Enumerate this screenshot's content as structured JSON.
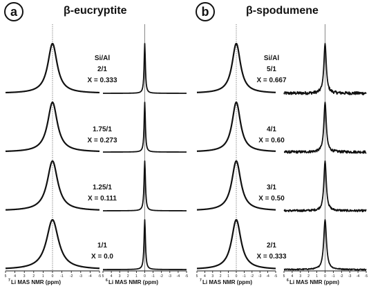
{
  "chart_data": [
    {
      "type": "line",
      "panel_letter": "a",
      "title": "β-eucryptite",
      "xlabel_left": {
        "sup": "7",
        "text": "Li MAS NMR (ppm)"
      },
      "xlabel_right": {
        "sup": "6",
        "text": "Li MAS NMR (ppm)"
      },
      "xlim": [
        5,
        -5
      ],
      "xticks": [
        "5",
        "4",
        "3",
        "2",
        "1",
        "0",
        "-1",
        "-2",
        "-3",
        "-4",
        "-5"
      ],
      "grid": false,
      "series": [
        {
          "label_lines": [
            "Si/Al",
            "2/1",
            "X = 0.333"
          ],
          "left_fwhm_ppm": 1.2,
          "right_fwhm_ppm": 0.18,
          "right_noise": 0
        },
        {
          "label_lines": [
            "1.75/1",
            "X = 0.273"
          ],
          "left_fwhm_ppm": 1.25,
          "right_fwhm_ppm": 0.18,
          "right_noise": 0
        },
        {
          "label_lines": [
            "1.25/1",
            "X = 0.111"
          ],
          "left_fwhm_ppm": 1.35,
          "right_fwhm_ppm": 0.2,
          "right_noise": 0
        },
        {
          "label_lines": [
            "1/1",
            "X = 0.0"
          ],
          "left_fwhm_ppm": 1.55,
          "right_fwhm_ppm": 0.2,
          "right_noise": 0
        }
      ]
    },
    {
      "type": "line",
      "panel_letter": "b",
      "title": "β-spodumene",
      "xlabel_left": {
        "sup": "7",
        "text": "Li MAS NMR (ppm)"
      },
      "xlabel_right": {
        "sup": "6",
        "text": "Li MAS NMR (ppm)"
      },
      "xlim": [
        5,
        -5
      ],
      "xticks": [
        "5",
        "4",
        "3",
        "2",
        "1",
        "0",
        "-1",
        "-2",
        "-3",
        "-4",
        "-5"
      ],
      "grid": false,
      "series": [
        {
          "label_lines": [
            "Si/Al",
            "5/1",
            "X = 0.667"
          ],
          "left_fwhm_ppm": 1.3,
          "right_fwhm_ppm": 0.35,
          "right_noise": 0.06
        },
        {
          "label_lines": [
            "4/1",
            "X = 0.60"
          ],
          "left_fwhm_ppm": 1.3,
          "right_fwhm_ppm": 0.35,
          "right_noise": 0.05
        },
        {
          "label_lines": [
            "3/1",
            "X = 0.50"
          ],
          "left_fwhm_ppm": 1.4,
          "right_fwhm_ppm": 0.35,
          "right_noise": 0.04
        },
        {
          "label_lines": [
            "2/1",
            "X = 0.333"
          ],
          "left_fwhm_ppm": 1.45,
          "right_fwhm_ppm": 0.4,
          "right_noise": 0.02
        }
      ]
    }
  ],
  "colors": {
    "line": "#111111",
    "reference_line": "#555555",
    "background": "#ffffff"
  }
}
